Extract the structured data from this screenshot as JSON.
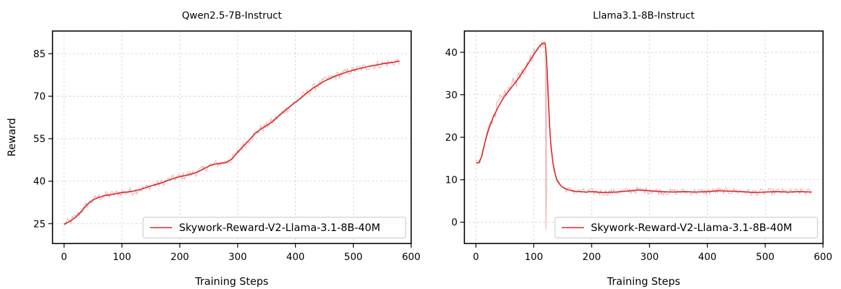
{
  "chart_data": [
    {
      "type": "line",
      "title": "Qwen2.5-7B-Instruct",
      "xlabel": "Training Steps",
      "ylabel": "Reward",
      "xlim": [
        -20,
        600
      ],
      "ylim": [
        18,
        93
      ],
      "xticks": [
        0,
        100,
        200,
        300,
        400,
        500,
        600
      ],
      "yticks": [
        25,
        40,
        55,
        70,
        85
      ],
      "grid": true,
      "legend_position": "lower-right",
      "series": [
        {
          "name": "Skywork-Reward-V2-Llama-3.1-8B-40M",
          "smoothed": true,
          "x": [
            0,
            10,
            20,
            30,
            40,
            50,
            60,
            70,
            80,
            90,
            100,
            110,
            120,
            130,
            140,
            150,
            160,
            170,
            180,
            190,
            200,
            210,
            220,
            230,
            240,
            250,
            260,
            270,
            280,
            290,
            300,
            310,
            320,
            330,
            340,
            350,
            360,
            370,
            380,
            390,
            400,
            410,
            420,
            430,
            440,
            450,
            460,
            470,
            480,
            490,
            500,
            510,
            520,
            530,
            540,
            550,
            560,
            570,
            580
          ],
          "y": [
            24.8,
            25.8,
            27.3,
            29.4,
            31.8,
            33.4,
            34.3,
            34.9,
            35.2,
            35.6,
            36.0,
            36.2,
            36.5,
            37.0,
            37.6,
            38.3,
            38.9,
            39.5,
            40.3,
            41.0,
            41.6,
            42.0,
            42.5,
            43.2,
            44.2,
            45.3,
            46.0,
            46.3,
            46.6,
            47.8,
            50.2,
            52.4,
            54.5,
            56.8,
            58.4,
            59.6,
            61.0,
            62.8,
            64.6,
            66.3,
            67.9,
            69.5,
            71.2,
            72.8,
            74.1,
            75.3,
            76.3,
            77.2,
            77.9,
            78.6,
            79.2,
            79.7,
            80.2,
            80.7,
            81.0,
            81.4,
            81.7,
            82.0,
            82.4
          ]
        }
      ]
    },
    {
      "type": "line",
      "title": "Llama3.1-8B-Instruct",
      "xlabel": "Training Steps",
      "ylabel": "",
      "xlim": [
        -20,
        600
      ],
      "ylim": [
        -5,
        45
      ],
      "xticks": [
        0,
        100,
        200,
        300,
        400,
        500,
        600
      ],
      "yticks": [
        0,
        10,
        20,
        30,
        40
      ],
      "grid": true,
      "legend_position": "lower-right",
      "series": [
        {
          "name": "Skywork-Reward-V2-Llama-3.1-8B-40M",
          "smoothed": true,
          "x": [
            0,
            5,
            10,
            15,
            20,
            25,
            30,
            40,
            50,
            60,
            70,
            80,
            90,
            100,
            105,
            110,
            114,
            118,
            120,
            122,
            124,
            126,
            128,
            130,
            133,
            136,
            140,
            145,
            150,
            160,
            170,
            180,
            190,
            200,
            220,
            240,
            260,
            280,
            300,
            320,
            340,
            360,
            380,
            400,
            420,
            440,
            460,
            480,
            500,
            520,
            540,
            560,
            580
          ],
          "y": [
            14.0,
            14.0,
            15.5,
            18.5,
            21.0,
            23.0,
            24.8,
            27.5,
            29.8,
            31.5,
            33.2,
            35.2,
            37.3,
            39.5,
            40.5,
            41.5,
            42.0,
            42.2,
            41.8,
            38.5,
            33.0,
            26.5,
            21.0,
            17.5,
            14.0,
            11.8,
            10.0,
            8.9,
            8.2,
            7.6,
            7.3,
            7.2,
            7.1,
            7.2,
            7.0,
            7.1,
            7.3,
            7.6,
            7.4,
            7.2,
            7.1,
            7.2,
            7.1,
            7.2,
            7.4,
            7.3,
            7.2,
            7.0,
            7.1,
            7.2,
            7.1,
            7.2,
            7.1
          ]
        }
      ]
    }
  ]
}
